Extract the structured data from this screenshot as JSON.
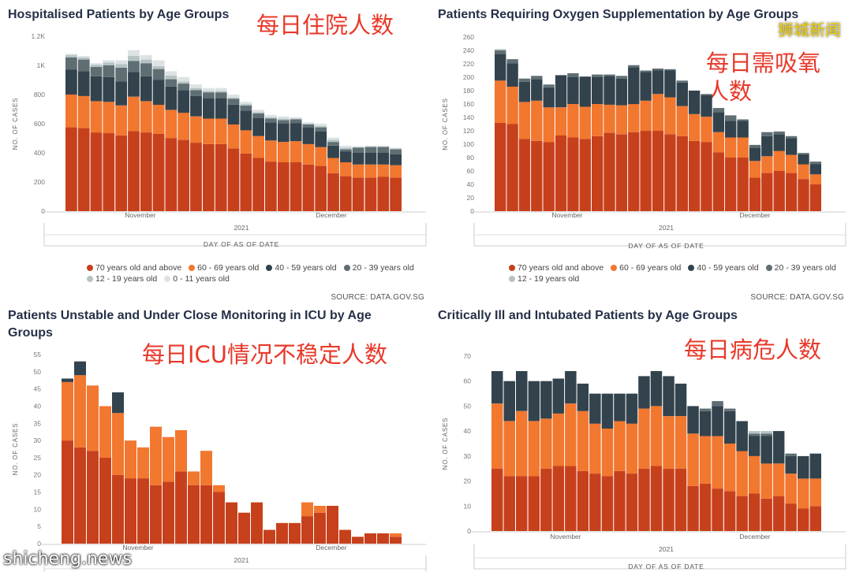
{
  "colors": {
    "70plus": "#c7401c",
    "60_69": "#f2772f",
    "40_59": "#33434d",
    "20_39": "#5e6e73",
    "12_19": "#b6c3c5",
    "0_11": "#dde3e4"
  },
  "legend_labels": {
    "70plus": "70 years old and above",
    "60_69": "60 - 69 years old",
    "40_59": "40 - 59 years old",
    "20_39": "20 - 39 years old",
    "12_19": "12 - 19 years old",
    "0_11": "0 - 11 years old"
  },
  "chart_data": [
    {
      "type": "bar",
      "stacked": true,
      "title": "Hospitalised Patients by Age Groups",
      "annotation_cn": "每日住院人数",
      "xlabel": "DAY OF AS OF DATE",
      "ylabel": "NO. OF CASES",
      "x_month_labels": [
        "November",
        "December"
      ],
      "x_year_label": "2021",
      "yticks": [
        0,
        200,
        400,
        600,
        800,
        "1K",
        "1.2K"
      ],
      "ylim": [
        0,
        1200
      ],
      "legend": [
        "70plus",
        "60_69",
        "40_59",
        "20_39",
        "12_19",
        "0_11"
      ],
      "source": "SOURCE: DATA.GOV.SG",
      "series": [
        {
          "key": "70plus",
          "values": [
            575,
            570,
            540,
            535,
            520,
            550,
            540,
            530,
            500,
            490,
            470,
            460,
            460,
            430,
            395,
            365,
            340,
            335,
            335,
            320,
            310,
            260,
            240,
            230,
            230,
            235,
            230
          ]
        },
        {
          "key": "60_69",
          "values": [
            225,
            220,
            215,
            215,
            205,
            235,
            215,
            200,
            195,
            185,
            180,
            175,
            175,
            165,
            160,
            150,
            145,
            140,
            145,
            140,
            130,
            105,
            95,
            90,
            90,
            85,
            85
          ]
        },
        {
          "key": "40_59",
          "values": [
            170,
            170,
            170,
            170,
            165,
            170,
            170,
            170,
            160,
            155,
            140,
            140,
            140,
            135,
            135,
            125,
            125,
            125,
            125,
            115,
            110,
            85,
            75,
            80,
            80,
            80,
            75
          ]
        },
        {
          "key": "20_39",
          "values": [
            85,
            80,
            65,
            80,
            95,
            75,
            90,
            75,
            50,
            45,
            40,
            40,
            40,
            40,
            35,
            30,
            25,
            25,
            25,
            20,
            25,
            25,
            15,
            35,
            40,
            40,
            35
          ]
        },
        {
          "key": "12_19",
          "values": [
            15,
            15,
            15,
            20,
            25,
            35,
            25,
            20,
            25,
            15,
            15,
            10,
            10,
            10,
            10,
            10,
            10,
            10,
            5,
            5,
            10,
            15,
            10,
            5,
            5,
            5,
            5
          ]
        },
        {
          "key": "0_11",
          "values": [
            10,
            10,
            10,
            15,
            25,
            40,
            30,
            40,
            30,
            30,
            25,
            20,
            20,
            20,
            15,
            15,
            15,
            15,
            10,
            10,
            15,
            15,
            15,
            5,
            5,
            5,
            5
          ]
        }
      ]
    },
    {
      "type": "bar",
      "stacked": true,
      "title": "Patients Requiring Oxygen Supplementation by Age Groups",
      "annotation_cn": "每日需吸氧\n人数",
      "xlabel": "DAY OF AS OF DATE",
      "ylabel": "NO. OF CASES",
      "x_month_labels": [
        "November",
        "December"
      ],
      "x_year_label": "2021",
      "yticks": [
        0,
        20,
        40,
        60,
        80,
        100,
        120,
        140,
        160,
        180,
        200,
        220,
        240,
        260
      ],
      "ylim": [
        0,
        260
      ],
      "legend": [
        "70plus",
        "60_69",
        "40_59",
        "20_39",
        "12_19"
      ],
      "source": "SOURCE: DATA.GOV.SG",
      "series": [
        {
          "key": "70plus",
          "values": [
            132,
            130,
            108,
            105,
            103,
            113,
            110,
            108,
            112,
            117,
            115,
            118,
            120,
            120,
            115,
            112,
            105,
            103,
            88,
            80,
            80,
            50,
            57,
            60,
            57,
            48,
            40
          ]
        },
        {
          "key": "60_69",
          "values": [
            63,
            56,
            55,
            60,
            52,
            42,
            50,
            48,
            48,
            42,
            43,
            42,
            45,
            55,
            55,
            45,
            40,
            38,
            30,
            30,
            30,
            25,
            25,
            30,
            27,
            22,
            15
          ]
        },
        {
          "key": "40_59",
          "values": [
            40,
            35,
            30,
            32,
            30,
            48,
            40,
            45,
            40,
            43,
            40,
            55,
            43,
            35,
            40,
            35,
            35,
            32,
            30,
            25,
            25,
            20,
            30,
            25,
            25,
            15,
            15
          ]
        },
        {
          "key": "20_39",
          "values": [
            5,
            6,
            5,
            5,
            4,
            0,
            6,
            0,
            4,
            2,
            4,
            3,
            2,
            3,
            2,
            3,
            0,
            2,
            6,
            8,
            2,
            4,
            6,
            4,
            3,
            2,
            4
          ]
        },
        {
          "key": "12_19",
          "values": [
            2,
            0,
            0,
            0,
            0,
            0,
            0,
            0,
            0,
            0,
            0,
            0,
            0,
            0,
            0,
            0,
            0,
            0,
            0,
            0,
            0,
            0,
            0,
            0,
            0,
            0,
            0
          ]
        }
      ]
    },
    {
      "type": "bar",
      "stacked": true,
      "title": "Patients Unstable and Under Close Monitoring in ICU by Age Groups",
      "annotation_cn": "每日ICU情况不稳定人数",
      "ylabel": "NO. OF CASES",
      "x_month_labels": [
        "November",
        "December"
      ],
      "x_year_label": "2021",
      "yticks": [
        0,
        5,
        10,
        15,
        20,
        25,
        30,
        35,
        40,
        45,
        50,
        55
      ],
      "ylim": [
        0,
        55
      ],
      "legend": [],
      "series": [
        {
          "key": "70plus",
          "values": [
            30,
            28,
            27,
            25,
            20,
            19,
            19,
            17,
            18,
            21,
            17,
            17,
            15,
            12,
            9,
            12,
            4,
            6,
            6,
            8,
            9,
            11,
            4,
            2,
            3,
            3,
            2
          ]
        },
        {
          "key": "60_69",
          "values": [
            17,
            21,
            19,
            15,
            18,
            11,
            9,
            17,
            13,
            12,
            4,
            10,
            2,
            0,
            0,
            0,
            0,
            0,
            0,
            4,
            2,
            0,
            0,
            0,
            0,
            0,
            1
          ]
        },
        {
          "key": "40_59",
          "values": [
            1,
            4,
            0,
            0,
            6,
            0,
            0,
            0,
            0,
            0,
            0,
            0,
            0,
            0,
            0,
            0,
            0,
            0,
            0,
            0,
            0,
            0,
            0,
            0,
            0,
            0,
            0
          ]
        }
      ]
    },
    {
      "type": "bar",
      "stacked": true,
      "title": "Critically Ill and Intubated Patients by Age Groups",
      "annotation_cn": "每日病危人数",
      "xlabel": "DAY OF AS OF DATE",
      "ylabel": "NO. OF CASES",
      "x_month_labels": [
        "November",
        "December"
      ],
      "x_year_label": "2021",
      "yticks": [
        0,
        10,
        20,
        30,
        40,
        50,
        60,
        70
      ],
      "ylim": [
        0,
        70
      ],
      "legend": [],
      "series": [
        {
          "key": "70plus",
          "values": [
            25,
            22,
            22,
            22,
            25,
            26,
            26,
            24,
            23,
            22,
            24,
            23,
            25,
            26,
            25,
            25,
            18,
            19,
            17,
            16,
            14,
            15,
            13,
            14,
            11,
            9,
            10
          ]
        },
        {
          "key": "60_69",
          "values": [
            26,
            22,
            26,
            22,
            20,
            21,
            25,
            24,
            20,
            19,
            20,
            20,
            24,
            24,
            21,
            21,
            21,
            19,
            21,
            19,
            18,
            15,
            14,
            13,
            12,
            12,
            11
          ]
        },
        {
          "key": "40_59",
          "values": [
            13,
            16,
            16,
            16,
            15,
            14,
            13,
            11,
            12,
            14,
            11,
            12,
            13,
            14,
            16,
            13,
            11,
            10,
            12,
            13,
            12,
            8,
            11,
            13,
            7,
            9,
            10
          ]
        },
        {
          "key": "20_39",
          "values": [
            0,
            0,
            0,
            0,
            0,
            0,
            0,
            0,
            0,
            0,
            0,
            0,
            0,
            0,
            0,
            0,
            0,
            1,
            2,
            1,
            0,
            1,
            1,
            0,
            1,
            0,
            0
          ]
        },
        {
          "key": "12_19",
          "values": [
            0,
            0,
            0,
            0,
            0,
            0,
            0,
            0,
            0,
            0,
            0,
            0,
            0,
            0,
            0,
            0,
            0,
            0,
            0,
            0,
            0,
            1,
            1,
            0,
            0,
            0,
            0
          ]
        }
      ]
    }
  ],
  "watermarks": {
    "top_right": "狮城新闻",
    "bottom_left": "shicheng.news"
  }
}
